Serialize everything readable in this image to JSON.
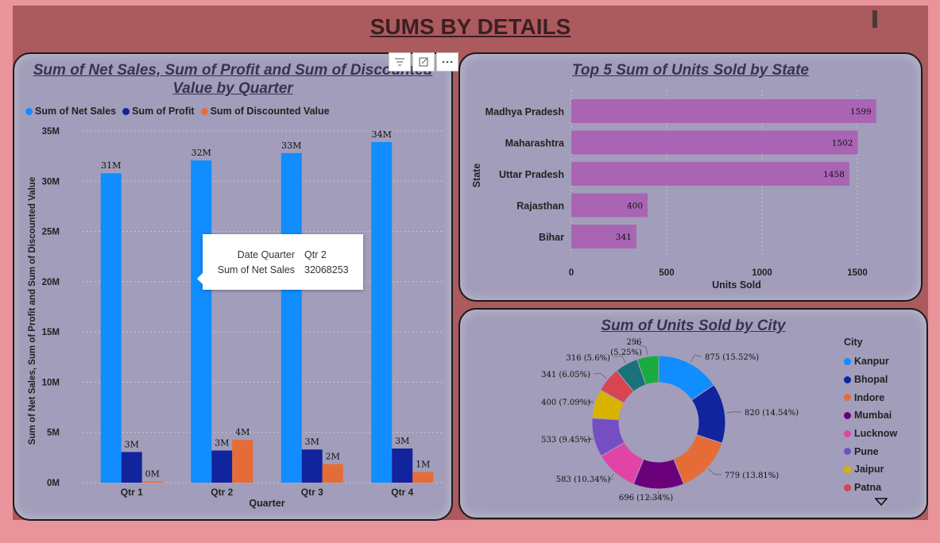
{
  "page": {
    "title": "SUMS BY DETAILS"
  },
  "quarter_chart": {
    "title": "Sum of Net Sales, Sum of Profit and Sum of Discounted Value by Quarter",
    "legend": [
      {
        "label": "Sum of Net Sales",
        "color": "#118dff"
      },
      {
        "label": "Sum of Profit",
        "color": "#12239e"
      },
      {
        "label": "Sum of Discounted Value",
        "color": "#e66c37"
      }
    ],
    "tooltip": {
      "rows": [
        {
          "key": "Date Quarter",
          "value": "Qtr 2"
        },
        {
          "key": "Sum of Net Sales",
          "value": "32068253"
        }
      ]
    },
    "toolbar": [
      "filter-icon",
      "focus-mode-icon",
      "more-options-icon"
    ]
  },
  "state_chart": {
    "title": "Top 5 Sum of Units Sold by State"
  },
  "city_chart": {
    "title": "Sum of Units Sold by City",
    "legend_title": "City",
    "legend_items": [
      "Kanpur",
      "Bhopal",
      "Indore",
      "Mumbai",
      "Lucknow",
      "Pune",
      "Jaipur",
      "Patna"
    ],
    "more_icon": "chevron-down-icon"
  },
  "chart_data": [
    {
      "type": "bar",
      "title": "Sum of Net Sales, Sum of Profit and Sum of Discounted Value by Quarter",
      "xlabel": "Quarter",
      "ylabel": "Sum of Net Sales, Sum of Profit and Sum of Discounted Value",
      "categories": [
        "Qtr 1",
        "Qtr 2",
        "Qtr 3",
        "Qtr 4"
      ],
      "ylim": [
        0,
        35000000
      ],
      "yticks": [
        0,
        5000000,
        10000000,
        15000000,
        20000000,
        25000000,
        30000000,
        35000000
      ],
      "ytick_labels": [
        "0M",
        "5M",
        "10M",
        "15M",
        "20M",
        "25M",
        "30M",
        "35M"
      ],
      "grid": true,
      "legend_position": "top-left",
      "series": [
        {
          "name": "Sum of Net Sales",
          "color": "#118dff",
          "values": [
            30800000,
            32068253,
            32800000,
            33900000
          ],
          "labels": [
            "31M",
            "32M",
            "33M",
            "34M"
          ]
        },
        {
          "name": "Sum of Profit",
          "color": "#12239e",
          "values": [
            3050000,
            3200000,
            3300000,
            3400000
          ],
          "labels": [
            "3M",
            "3M",
            "3M",
            "3M"
          ]
        },
        {
          "name": "Sum of Discounted Value",
          "color": "#e66c37",
          "values": [
            100000,
            4250000,
            1850000,
            1050000
          ],
          "labels": [
            "0M",
            "4M",
            "2M",
            "1M"
          ]
        }
      ]
    },
    {
      "type": "bar",
      "orientation": "horizontal",
      "title": "Top 5 Sum of Units Sold by State",
      "xlabel": "Units Sold",
      "ylabel": "State",
      "categories": [
        "Madhya Pradesh",
        "Maharashtra",
        "Uttar Pradesh",
        "Rajasthan",
        "Bihar"
      ],
      "values": [
        1599,
        1502,
        1458,
        400,
        341
      ],
      "xlim": [
        0,
        1800
      ],
      "xticks": [
        0,
        500,
        1000,
        1500
      ],
      "grid": true,
      "color": "#a964b4"
    },
    {
      "type": "pie",
      "donut": true,
      "title": "Sum of Units Sold by City",
      "legend_title": "City",
      "slices": [
        {
          "label": "Kanpur",
          "value": 875,
          "text": "875 (15.52%)",
          "color": "#118dff"
        },
        {
          "label": "Bhopal",
          "value": 820,
          "text": "820 (14.54%)",
          "color": "#12239e"
        },
        {
          "label": "Indore",
          "value": 779,
          "text": "779 (13.81%)",
          "color": "#e66c37"
        },
        {
          "label": "Mumbai",
          "value": 696,
          "text": "696 (12.34%)",
          "color": "#6b007b"
        },
        {
          "label": "Lucknow",
          "value": 583,
          "text": "583 (10.34%)",
          "color": "#e044a7"
        },
        {
          "label": "Pune",
          "value": 533,
          "text": "533 (9.45%)",
          "color": "#744ec2"
        },
        {
          "label": "Jaipur",
          "value": 400,
          "text": "400 (7.09%)",
          "color": "#d9b300"
        },
        {
          "label": "Patna",
          "value": 341,
          "text": "341 (6.05%)",
          "color": "#d64550"
        },
        {
          "label": "",
          "value": 316,
          "text": "316 (5.6%)",
          "color": "#197278"
        },
        {
          "label": "",
          "value": 296,
          "text": "296 (5.25%)",
          "color": "#1aab40"
        }
      ]
    }
  ]
}
